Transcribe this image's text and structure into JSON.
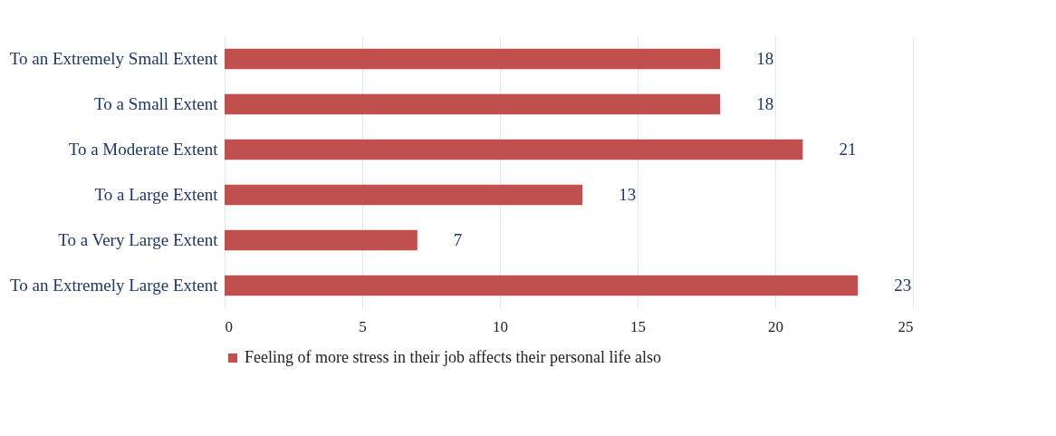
{
  "chart_data": {
    "type": "bar",
    "orientation": "horizontal",
    "categories": [
      "To an Extremely Small Extent",
      "To a Small Extent",
      "To a Moderate Extent",
      "To a Large Extent",
      "To a Very Large Extent",
      "To an Extremely Large Extent"
    ],
    "series": [
      {
        "name": "Feeling of more stress in their job affects their personal life also",
        "color": "#c0504d",
        "values": [
          18,
          18,
          21,
          13,
          7,
          23
        ]
      }
    ],
    "xlim": [
      0,
      25
    ],
    "xticks": [
      0,
      5,
      10,
      15,
      20,
      25
    ],
    "grid": "x",
    "legend": "bottom",
    "data_labels": true
  }
}
